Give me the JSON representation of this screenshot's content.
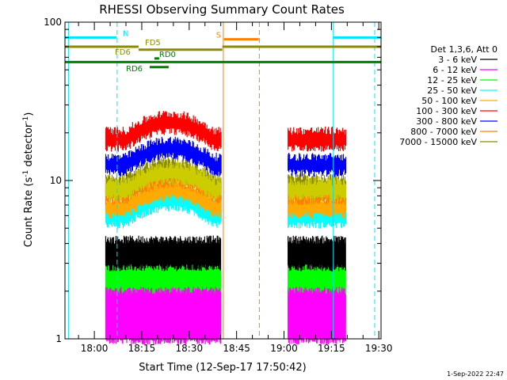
{
  "chart_data": {
    "type": "line",
    "title": "RHESSI Observing Summary Count Rates",
    "xlabel": "Start Time (12-Sep-17 17:50:42)",
    "ylabel_main": "Count Rate (s",
    "ylabel_sup1": "-1",
    "ylabel_mid": " detector",
    "ylabel_sup2": "-1",
    "ylabel_end": ")",
    "yscale": "log",
    "ylim": [
      1,
      100
    ],
    "yticks": [
      {
        "value": 1,
        "label": "1"
      },
      {
        "value": 10,
        "label": "10"
      },
      {
        "value": 100,
        "label": "100"
      }
    ],
    "xlim_minutes": [
      -9.3,
      90.7
    ],
    "xticks": [
      {
        "label": "18:00",
        "t": 0
      },
      {
        "label": "18:15",
        "t": 15
      },
      {
        "label": "18:30",
        "t": 30
      },
      {
        "label": "18:45",
        "t": 45
      },
      {
        "label": "19:00",
        "t": 60
      },
      {
        "label": "19:15",
        "t": 75
      },
      {
        "label": "19:30",
        "t": 90
      }
    ],
    "legend_title": "Det 1,3,6, Att 0",
    "legend_position": "right",
    "data_intervals": [
      [
        3.6,
        40.1
      ],
      [
        61.3,
        79.6
      ]
    ],
    "series": [
      {
        "name": "3 - 6 keV",
        "color": "#000000",
        "low": 2.9,
        "high": 4.2,
        "bumps": [
          [
            -0.5,
            0,
            0
          ]
        ]
      },
      {
        "name": "6 - 12 keV",
        "color": "#ff00ff",
        "low": 1.0,
        "high": 2.0,
        "bumps": [
          [
            0,
            0,
            0
          ]
        ]
      },
      {
        "name": "12 - 25 keV",
        "color": "#00ff00",
        "low": 1.35,
        "high": 3.0,
        "bumps": [
          [
            0,
            0,
            0
          ]
        ]
      },
      {
        "name": "25 - 50 keV",
        "color": "#00ffff",
        "low": 5.4,
        "high": 7.0,
        "bumps": [
          [
            0,
            0,
            0
          ]
        ]
      },
      {
        "name": "50 - 100 keV",
        "color": "#ffaa00",
        "low": 6.2,
        "high": 7.6,
        "bumps": [
          [
            0,
            0,
            0
          ]
        ]
      },
      {
        "name": "100 - 300 keV",
        "color": "#ff0000",
        "low": 16.5,
        "high": 20.5,
        "bumps": [
          [
            0,
            0,
            0
          ]
        ]
      },
      {
        "name": "300 - 800 keV",
        "color": "#0000ff",
        "low": 11.5,
        "high": 14.0,
        "bumps": [
          [
            0,
            0,
            0
          ]
        ]
      },
      {
        "name": "800 - 7000 keV",
        "color": "#ff7f00",
        "low": 7.6,
        "high": 9.0,
        "bumps": [
          [
            0,
            0,
            0
          ]
        ]
      },
      {
        "name": "7000 - 15000 keV",
        "color": "#8b8b00",
        "low": 8.8,
        "high": 10.4,
        "bumps": [
          [
            0,
            0,
            0
          ]
        ]
      }
    ],
    "extra_band": {
      "color": "#cccc00",
      "low": 8.0,
      "high": 9.8
    },
    "flags": [
      {
        "label": "N",
        "color": "#00e5ff",
        "y": 80,
        "segments": [
          [
            -9.3,
            7.0
          ],
          [
            75.5,
            90.7
          ]
        ],
        "label_t": 9.0,
        "label_dy": -2
      },
      {
        "label": "S",
        "color": "#ff7f00",
        "y": 78,
        "segments": [
          [
            41.0,
            52.0
          ]
        ],
        "label_t": 38.5,
        "label_dy": -2
      },
      {
        "label": "FD5",
        "color": "#8b8b00",
        "y": 70,
        "segments": [
          [
            -9.3,
            14.0
          ],
          [
            40.5,
            90.7
          ]
        ],
        "label_t": 16.0,
        "label_dy": -2
      },
      {
        "label": "FD6",
        "color": "#8b8b00",
        "y": 67,
        "segments": [
          [
            14.0,
            40.5
          ]
        ],
        "label_t": 6.5,
        "label_dy": 6
      },
      {
        "label": "RD0",
        "color": "#007f00",
        "y": 59,
        "segments": [
          [
            19.0,
            20.5
          ]
        ],
        "label_t": 20.5,
        "label_dy": -2
      },
      {
        "label": "RD6",
        "color": "#007f00",
        "y": 52,
        "segments": [
          [
            17.5,
            23.5
          ]
        ],
        "label_t": 10.0,
        "label_dy": 5
      },
      {
        "label": "",
        "color": "#007f00",
        "y": 56,
        "segments": [
          [
            -9.3,
            90.7
          ]
        ],
        "label_t": 0,
        "label_dy": 0
      }
    ],
    "vlines": [
      {
        "t": -8.2,
        "color": "#00e5ff",
        "dash": false
      },
      {
        "t": 7.2,
        "color": "#00e5ff",
        "dash": true
      },
      {
        "t": 40.8,
        "color": "#ff7f00",
        "dash": false
      },
      {
        "t": 52.2,
        "color": "#ff7f00",
        "dash": true
      },
      {
        "t": 75.6,
        "color": "#00e5ff",
        "dash": false
      },
      {
        "t": 88.7,
        "color": "#00e5ff",
        "dash": true
      }
    ]
  },
  "footer": {
    "timestamp": "1-Sep-2022 22:47"
  }
}
